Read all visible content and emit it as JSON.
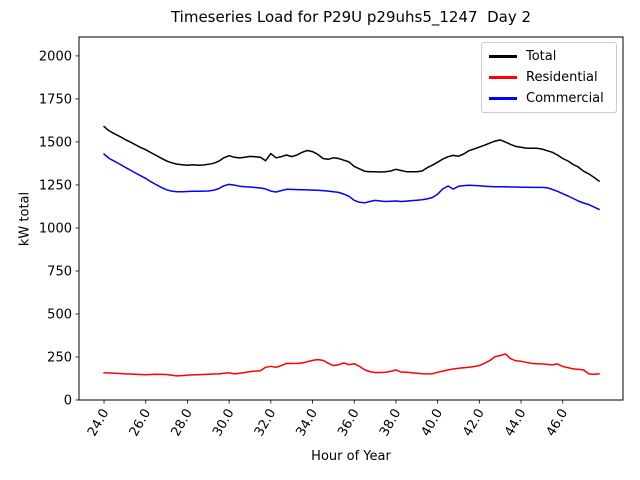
{
  "chart_data": {
    "type": "line",
    "title": "Timeseries Load for P29U p29uhs5_1247  Day 2",
    "xlabel": "Hour of Year",
    "ylabel": "kW total",
    "xlim": [
      22.8,
      48.89
    ],
    "ylim": [
      0,
      2110
    ],
    "grid": false,
    "legend": {
      "position": "upper-right",
      "entries": [
        "Total",
        "Residential",
        "Commercial"
      ]
    },
    "xticks": {
      "values": [
        24,
        26,
        28,
        30,
        32,
        34,
        36,
        38,
        40,
        42,
        44,
        46
      ],
      "labels": [
        "24.0",
        "26.0",
        "28.0",
        "30.0",
        "32.0",
        "34.0",
        "36.0",
        "38.0",
        "40.0",
        "42.0",
        "44.0",
        "46.0"
      ],
      "rotation_deg": 60
    },
    "yticks": {
      "values": [
        0,
        250,
        500,
        750,
        1000,
        1250,
        1500,
        1750,
        2000
      ],
      "labels": [
        "0",
        "250",
        "500",
        "750",
        "1000",
        "1250",
        "1500",
        "1750",
        "2000"
      ]
    },
    "x_start": 24.0,
    "x_step": 0.25,
    "series": [
      {
        "name": "Total",
        "color": "#000000",
        "values": [
          1590,
          1564,
          1548,
          1532,
          1515,
          1500,
          1484,
          1468,
          1455,
          1438,
          1422,
          1405,
          1390,
          1379,
          1371,
          1368,
          1365,
          1367,
          1364,
          1366,
          1370,
          1376,
          1388,
          1408,
          1420,
          1411,
          1407,
          1411,
          1416,
          1414,
          1411,
          1391,
          1432,
          1408,
          1414,
          1424,
          1415,
          1424,
          1440,
          1450,
          1444,
          1428,
          1404,
          1399,
          1408,
          1404,
          1394,
          1384,
          1358,
          1344,
          1330,
          1327,
          1327,
          1325,
          1327,
          1331,
          1341,
          1334,
          1327,
          1327,
          1327,
          1331,
          1350,
          1365,
          1382,
          1400,
          1414,
          1422,
          1417,
          1430,
          1449,
          1459,
          1470,
          1481,
          1493,
          1505,
          1512,
          1499,
          1486,
          1474,
          1469,
          1464,
          1463,
          1463,
          1459,
          1449,
          1440,
          1424,
          1404,
          1389,
          1369,
          1354,
          1330,
          1314,
          1294,
          1272
        ]
      },
      {
        "name": "Residential",
        "color": "#ff0000",
        "values": [
          158,
          157,
          155,
          154,
          152,
          151,
          150,
          148,
          147,
          148,
          150,
          149,
          148,
          144,
          140,
          142,
          145,
          146,
          147,
          148,
          150,
          151,
          152,
          155,
          158,
          152,
          155,
          160,
          165,
          168,
          170,
          190,
          196,
          190,
          200,
          213,
          212,
          213,
          215,
          222,
          230,
          235,
          230,
          214,
          200,
          205,
          215,
          206,
          211,
          196,
          175,
          165,
          160,
          160,
          161,
          166,
          175,
          162,
          162,
          158,
          155,
          153,
          152,
          153,
          161,
          168,
          175,
          180,
          184,
          187,
          190,
          195,
          200,
          214,
          229,
          252,
          258,
          268,
          240,
          228,
          225,
          219,
          213,
          211,
          210,
          207,
          204,
          210,
          195,
          188,
          181,
          178,
          175,
          152,
          150,
          152
        ]
      },
      {
        "name": "Commercial",
        "color": "#0000ff",
        "values": [
          1430,
          1404,
          1388,
          1371,
          1354,
          1337,
          1320,
          1304,
          1288,
          1269,
          1252,
          1236,
          1222,
          1214,
          1211,
          1211,
          1212,
          1213,
          1213,
          1214,
          1215,
          1219,
          1229,
          1245,
          1253,
          1249,
          1243,
          1240,
          1238,
          1235,
          1232,
          1227,
          1214,
          1209,
          1217,
          1225,
          1224,
          1223,
          1222,
          1221,
          1220,
          1219,
          1217,
          1214,
          1211,
          1207,
          1197,
          1184,
          1161,
          1149,
          1146,
          1154,
          1160,
          1157,
          1154,
          1155,
          1157,
          1154,
          1156,
          1159,
          1161,
          1164,
          1169,
          1177,
          1196,
          1227,
          1244,
          1226,
          1242,
          1246,
          1248,
          1247,
          1245,
          1243,
          1241,
          1240,
          1239,
          1239,
          1238,
          1238,
          1237,
          1237,
          1236,
          1236,
          1236,
          1234,
          1224,
          1213,
          1199,
          1186,
          1171,
          1157,
          1145,
          1136,
          1121,
          1108
        ]
      }
    ]
  }
}
